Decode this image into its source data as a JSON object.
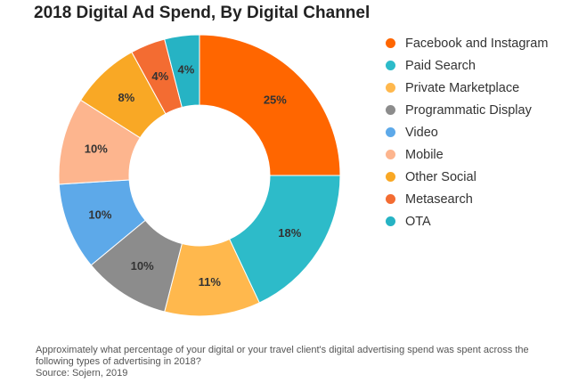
{
  "chart_data": {
    "type": "pie",
    "title": "2018 Digital Ad Spend, By Digital Channel",
    "donut": true,
    "legend_position": "right",
    "slices": [
      {
        "name": "Facebook and Instagram",
        "value": 25,
        "label": "25%",
        "color": "#FF6600"
      },
      {
        "name": "Paid Search",
        "value": 18,
        "label": "18%",
        "color": "#2DBBC9"
      },
      {
        "name": "Private Marketplace",
        "value": 11,
        "label": "11%",
        "color": "#FFB84D"
      },
      {
        "name": "Programmatic Display",
        "value": 10,
        "label": "10%",
        "color": "#8C8C8C"
      },
      {
        "name": "Video",
        "value": 10,
        "label": "10%",
        "color": "#5DA9E9"
      },
      {
        "name": "Mobile",
        "value": 10,
        "label": "10%",
        "color": "#FDB58E"
      },
      {
        "name": "Other Social",
        "value": 8,
        "label": "8%",
        "color": "#F9A825"
      },
      {
        "name": "Metasearch",
        "value": 4,
        "label": "4%",
        "color": "#F36C32"
      },
      {
        "name": "OTA",
        "value": 4,
        "label": "4%",
        "color": "#26B3C4"
      }
    ]
  },
  "footnote": {
    "question": "Approximately what percentage of your digital or your travel client's digital advertising spend was spent across the following types of advertising in 2018?",
    "source": "Source: Sojern, 2019"
  }
}
